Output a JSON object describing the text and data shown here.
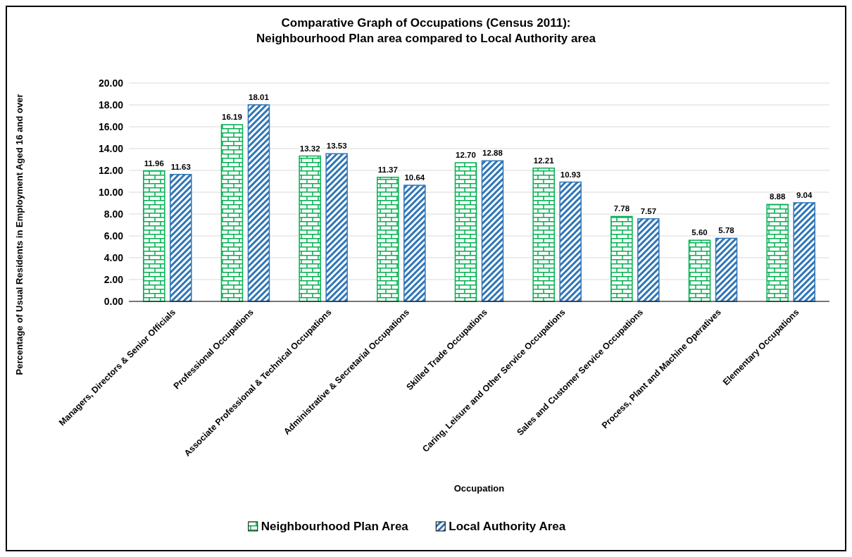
{
  "chart_data": {
    "type": "bar",
    "title": "Comparative Graph of Occupations (Census 2011):\nNeighbourhood Plan area compared to Local Authority area",
    "xlabel": "Occupation",
    "ylabel": "Percentage of Usual Residents in Employment Aged 16 and over",
    "categories": [
      "Managers, Directors & Senior Officials",
      "Professional Occupations",
      "Associate Professional & Technical Occupations",
      "Administrative & Secretarial Occupations",
      "Skilled Trade Occupations",
      "Caring, Leisure and Other Service Occupations",
      "Sales and Customer Service Occupations",
      "Process, Plant and Machine Operatives",
      "Elementary Occupations"
    ],
    "series": [
      {
        "name": "Neighbourhood Plan Area",
        "color": "#00b050",
        "values": [
          11.96,
          16.19,
          13.32,
          11.37,
          12.7,
          12.21,
          7.78,
          5.6,
          8.88
        ],
        "value_labels": [
          "11.96",
          "16.19",
          "13.32",
          "11.37",
          "12.70",
          "12.21",
          "7.78",
          "5.60",
          "8.88"
        ]
      },
      {
        "name": "Local Authority Area",
        "color": "#2e75b6",
        "values": [
          11.63,
          18.01,
          13.53,
          10.64,
          12.88,
          10.93,
          7.57,
          5.78,
          9.04
        ],
        "value_labels": [
          "11.63",
          "18.01",
          "13.53",
          "10.64",
          "12.88",
          "10.93",
          "7.57",
          "5.78",
          "9.04"
        ]
      }
    ],
    "ylim": [
      0,
      20
    ],
    "yticks": [
      {
        "value": 0,
        "label": "0.00"
      },
      {
        "value": 2,
        "label": "2.00"
      },
      {
        "value": 4,
        "label": "4.00"
      },
      {
        "value": 6,
        "label": "6.00"
      },
      {
        "value": 8,
        "label": "8.00"
      },
      {
        "value": 10,
        "label": "10.00"
      },
      {
        "value": 12,
        "label": "12.00"
      },
      {
        "value": 14,
        "label": "14.00"
      },
      {
        "value": 16,
        "label": "16.00"
      },
      {
        "value": 18,
        "label": "18.00"
      },
      {
        "value": 20,
        "label": "20.00"
      }
    ],
    "grid": "y",
    "legend": "bottom"
  }
}
